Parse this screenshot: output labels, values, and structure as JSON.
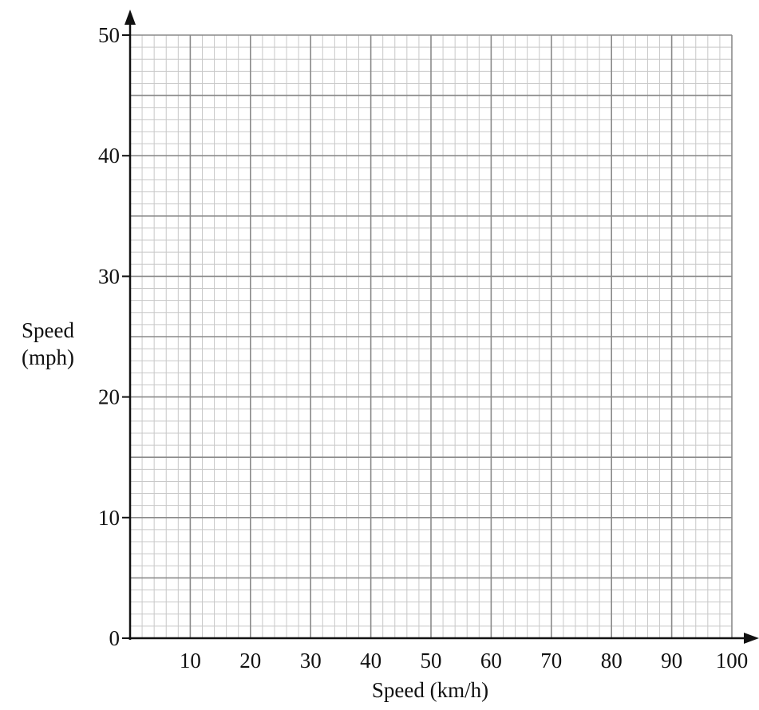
{
  "chart_data": {
    "type": "scatter",
    "title": "",
    "xlabel": "Speed (km/h)",
    "ylabel_line1": "Speed",
    "ylabel_line2": "(mph)",
    "xlim": [
      0,
      100
    ],
    "ylim": [
      0,
      50
    ],
    "x_ticks": [
      10,
      20,
      30,
      40,
      50,
      60,
      70,
      80,
      90,
      100
    ],
    "y_ticks": [
      0,
      10,
      20,
      30,
      40,
      50
    ],
    "x_tick_labels": [
      "10",
      "20",
      "30",
      "40",
      "50",
      "60",
      "70",
      "80",
      "90",
      "100"
    ],
    "y_tick_labels": [
      "0",
      "10",
      "20",
      "30",
      "40",
      "50"
    ],
    "grid": true,
    "grid_minor_x_step": 2,
    "grid_minor_y_step": 1,
    "grid_medium_y_step": 5,
    "series": []
  },
  "colors": {
    "axis": "#111111",
    "grid_major": "#8a8a8a",
    "grid_minor": "#c8c8c8"
  }
}
